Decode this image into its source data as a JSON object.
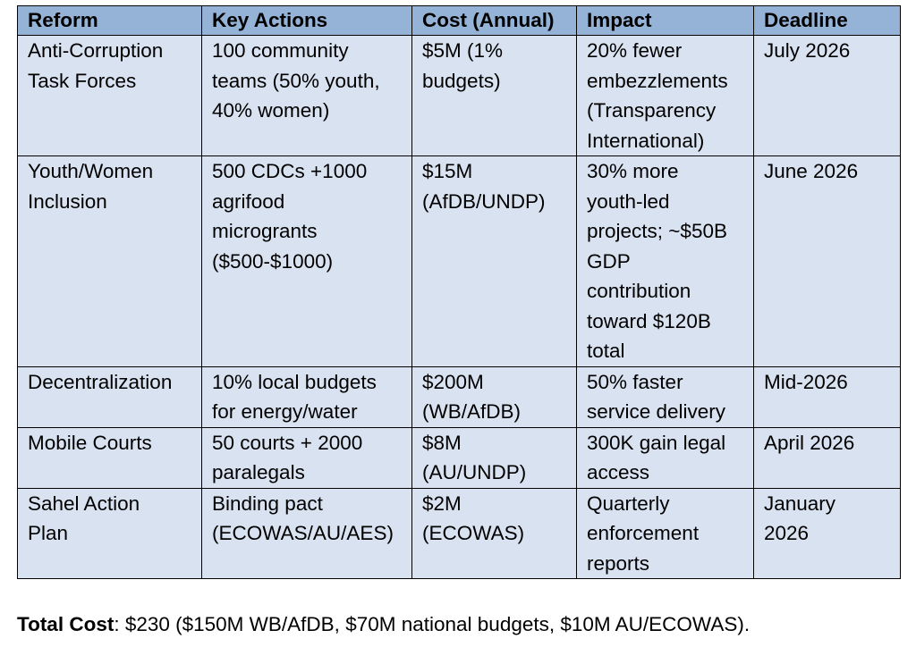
{
  "table": {
    "headers": [
      "Reform",
      "Key Actions",
      "Cost (Annual)",
      "Impact",
      "Deadline"
    ],
    "rows": [
      {
        "reform": [
          "Anti-Corruption",
          "Task Forces"
        ],
        "actions": [
          "100 community",
          "teams (50% youth,",
          "40% women)"
        ],
        "cost": [
          "$5M (1%",
          "budgets)"
        ],
        "impact": [
          "20% fewer",
          "embezzlements",
          "(Transparency",
          "International)"
        ],
        "deadline": [
          "July 2026"
        ]
      },
      {
        "reform": [
          "Youth/Women",
          "Inclusion"
        ],
        "actions": [
          "500 CDCs +1000",
          "agrifood",
          "microgrants",
          "($500-$1000)"
        ],
        "cost": [
          "$15M",
          "(AfDB/UNDP)"
        ],
        "impact": [
          "30% more",
          "youth-led",
          "projects; ~$50B",
          "GDP",
          "contribution",
          "toward $120B",
          "total"
        ],
        "deadline": [
          "June 2026"
        ]
      },
      {
        "reform": [
          "Decentralization"
        ],
        "actions": [
          "10% local budgets",
          "for energy/water"
        ],
        "cost": [
          "$200M",
          "(WB/AfDB)"
        ],
        "impact": [
          "50% faster",
          "service delivery"
        ],
        "deadline": [
          "Mid-2026"
        ]
      },
      {
        "reform": [
          "Mobile Courts"
        ],
        "actions": [
          "50 courts + 2000",
          "paralegals"
        ],
        "cost": [
          "$8M",
          "(AU/UNDP)"
        ],
        "impact": [
          "300K gain legal",
          "access"
        ],
        "deadline": [
          "April 2026"
        ]
      },
      {
        "reform": [
          "Sahel Action",
          "Plan"
        ],
        "actions": [
          "Binding pact",
          "(ECOWAS/AU/AES)"
        ],
        "cost": [
          "$2M",
          "(ECOWAS)"
        ],
        "impact": [
          "Quarterly",
          "enforcement",
          "reports"
        ],
        "deadline": [
          "January",
          "2026"
        ]
      }
    ]
  },
  "footer": {
    "label": "Total Cost",
    "text": ": $230 ($150M WB/AfDB, $70M national budgets, $10M AU/ECOWAS)."
  },
  "colors": {
    "header_bg": "#95b3d7",
    "body_bg": "#d9e2f0",
    "border": "#000000"
  }
}
